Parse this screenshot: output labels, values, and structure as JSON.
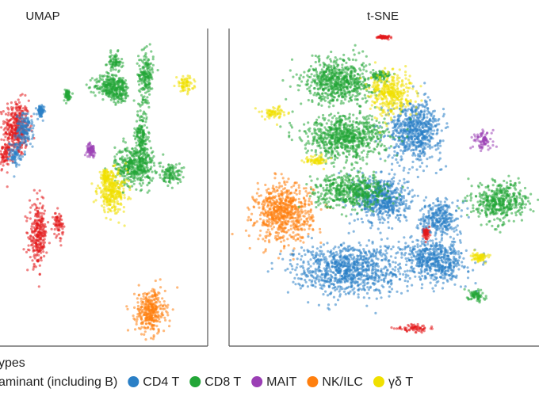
{
  "chart_data": [
    {
      "type": "scatter",
      "title": "UMAP",
      "xlabel": "",
      "ylabel": "",
      "grid": false,
      "clusters": [
        {
          "series": "contaminant",
          "center": [
            0.5,
            1.7
          ],
          "spread": [
            1.0,
            1.4
          ]
        },
        {
          "series": "contaminant",
          "center": [
            -0.6,
            0.2
          ],
          "spread": [
            0.5,
            0.6
          ]
        },
        {
          "series": "CD4 T",
          "center": [
            1.2,
            1.6
          ],
          "spread": [
            0.7,
            0.8
          ]
        },
        {
          "series": "CD4 T",
          "center": [
            0.4,
            0.3
          ],
          "spread": [
            0.5,
            0.6
          ]
        },
        {
          "series": "CD4 T",
          "center": [
            2.6,
            2.6
          ],
          "spread": [
            0.3,
            0.3
          ]
        },
        {
          "series": "CD8 T",
          "center": [
            9.2,
            5.3
          ],
          "spread": [
            0.6,
            0.5
          ]
        },
        {
          "series": "CD8 T",
          "center": [
            8.6,
            4.0
          ],
          "spread": [
            1.1,
            0.6
          ]
        },
        {
          "series": "CD8 T",
          "center": [
            9.6,
            3.8
          ],
          "spread": [
            0.9,
            0.7
          ]
        },
        {
          "series": "CD8 T",
          "center": [
            12.0,
            4.6
          ],
          "spread": [
            0.6,
            1.2
          ]
        },
        {
          "series": "CD8 T",
          "center": [
            11.6,
            1.2
          ],
          "spread": [
            0.5,
            1.4
          ]
        },
        {
          "series": "CD8 T",
          "center": [
            11.0,
            -0.4
          ],
          "spread": [
            1.6,
            1.0
          ]
        },
        {
          "series": "CD8 T",
          "center": [
            14.3,
            -0.8
          ],
          "spread": [
            0.8,
            0.5
          ]
        },
        {
          "series": "CD8 T",
          "center": [
            5.0,
            3.5
          ],
          "spread": [
            0.3,
            0.3
          ]
        },
        {
          "series": "MAIT",
          "center": [
            7.1,
            0.5
          ],
          "spread": [
            0.35,
            0.3
          ]
        },
        {
          "series": "NK/ILC",
          "center": [
            12.4,
            -8.4
          ],
          "spread": [
            1.2,
            1.1
          ]
        },
        {
          "series": "γδ T",
          "center": [
            15.5,
            4.1
          ],
          "spread": [
            0.7,
            0.4
          ]
        },
        {
          "series": "γδ T",
          "center": [
            9.0,
            -1.8
          ],
          "spread": [
            1.2,
            1.0
          ]
        },
        {
          "series": "γδ T",
          "center": [
            8.4,
            -1.0
          ],
          "spread": [
            0.3,
            0.3
          ]
        },
        {
          "series": "contaminant",
          "center": [
            2.4,
            -4.2
          ],
          "spread": [
            0.7,
            1.5
          ]
        },
        {
          "series": "contaminant",
          "center": [
            4.2,
            -3.6
          ],
          "spread": [
            0.4,
            0.6
          ]
        }
      ]
    },
    {
      "type": "scatter",
      "title": "t-SNE",
      "xlabel": "",
      "ylabel": "",
      "grid": false,
      "clusters": [
        {
          "series": "NK/ILC",
          "center": [
            -3.8,
            -3.2
          ],
          "spread": [
            1.4,
            1.9
          ]
        },
        {
          "series": "CD4 T",
          "center": [
            3.3,
            2.8
          ],
          "spread": [
            1.3,
            1.9
          ]
        },
        {
          "series": "CD4 T",
          "center": [
            1.5,
            -2.2
          ],
          "spread": [
            1.3,
            1.6
          ]
        },
        {
          "series": "CD4 T",
          "center": [
            -0.3,
            -7.3
          ],
          "spread": [
            2.7,
            1.7
          ]
        },
        {
          "series": "CD4 T",
          "center": [
            4.4,
            -6.7
          ],
          "spread": [
            1.5,
            1.4
          ]
        },
        {
          "series": "CD4 T",
          "center": [
            4.6,
            -3.6
          ],
          "spread": [
            0.9,
            1.2
          ]
        },
        {
          "series": "CD8 T",
          "center": [
            -0.8,
            6.4
          ],
          "spread": [
            1.7,
            1.5
          ]
        },
        {
          "series": "CD8 T",
          "center": [
            1.5,
            6.8
          ],
          "spread": [
            0.5,
            0.3
          ]
        },
        {
          "series": "CD8 T",
          "center": [
            -0.5,
            2.3
          ],
          "spread": [
            2.0,
            1.4
          ]
        },
        {
          "series": "CD8 T",
          "center": [
            -0.1,
            -1.6
          ],
          "spread": [
            1.8,
            1.1
          ]
        },
        {
          "series": "CD8 T",
          "center": [
            7.9,
            -2.4
          ],
          "spread": [
            1.3,
            1.3
          ]
        },
        {
          "series": "CD8 T",
          "center": [
            6.6,
            -9.2
          ],
          "spread": [
            0.4,
            0.4
          ]
        },
        {
          "series": "MAIT",
          "center": [
            7.0,
            2.1
          ],
          "spread": [
            0.5,
            0.6
          ]
        },
        {
          "series": "γδ T",
          "center": [
            2.0,
            5.5
          ],
          "spread": [
            1.0,
            1.4
          ]
        },
        {
          "series": "γδ T",
          "center": [
            -4.3,
            4.1
          ],
          "spread": [
            0.6,
            0.4
          ]
        },
        {
          "series": "γδ T",
          "center": [
            -2.0,
            0.6
          ],
          "spread": [
            0.5,
            0.3
          ]
        },
        {
          "series": "γδ T",
          "center": [
            6.8,
            -6.4
          ],
          "spread": [
            0.4,
            0.3
          ]
        },
        {
          "series": "contaminant",
          "center": [
            3.2,
            -11.6
          ],
          "spread": [
            0.8,
            0.25
          ]
        },
        {
          "series": "contaminant",
          "center": [
            3.9,
            -4.7
          ],
          "spread": [
            0.15,
            0.4
          ]
        },
        {
          "series": "contaminant",
          "center": [
            1.6,
            9.6
          ],
          "spread": [
            0.3,
            0.1
          ]
        }
      ]
    }
  ],
  "legend": {
    "title": "ypes",
    "items": [
      {
        "label": "aminant (including B)",
        "series": "contaminant",
        "color": "#e41a1c",
        "marker_visible": false
      },
      {
        "label": "CD4 T",
        "series": "CD4 T",
        "color": "#2a7fc6",
        "marker_visible": true
      },
      {
        "label": "CD8 T",
        "series": "CD8 T",
        "color": "#22a637",
        "marker_visible": true
      },
      {
        "label": "MAIT",
        "series": "MAIT",
        "color": "#9b3fb5",
        "marker_visible": true
      },
      {
        "label": "NK/ILC",
        "series": "NK/ILC",
        "color": "#ff7f0e",
        "marker_visible": true
      },
      {
        "label": "γδ T",
        "series": "γδ T",
        "color": "#f0e000",
        "marker_visible": true
      }
    ]
  }
}
